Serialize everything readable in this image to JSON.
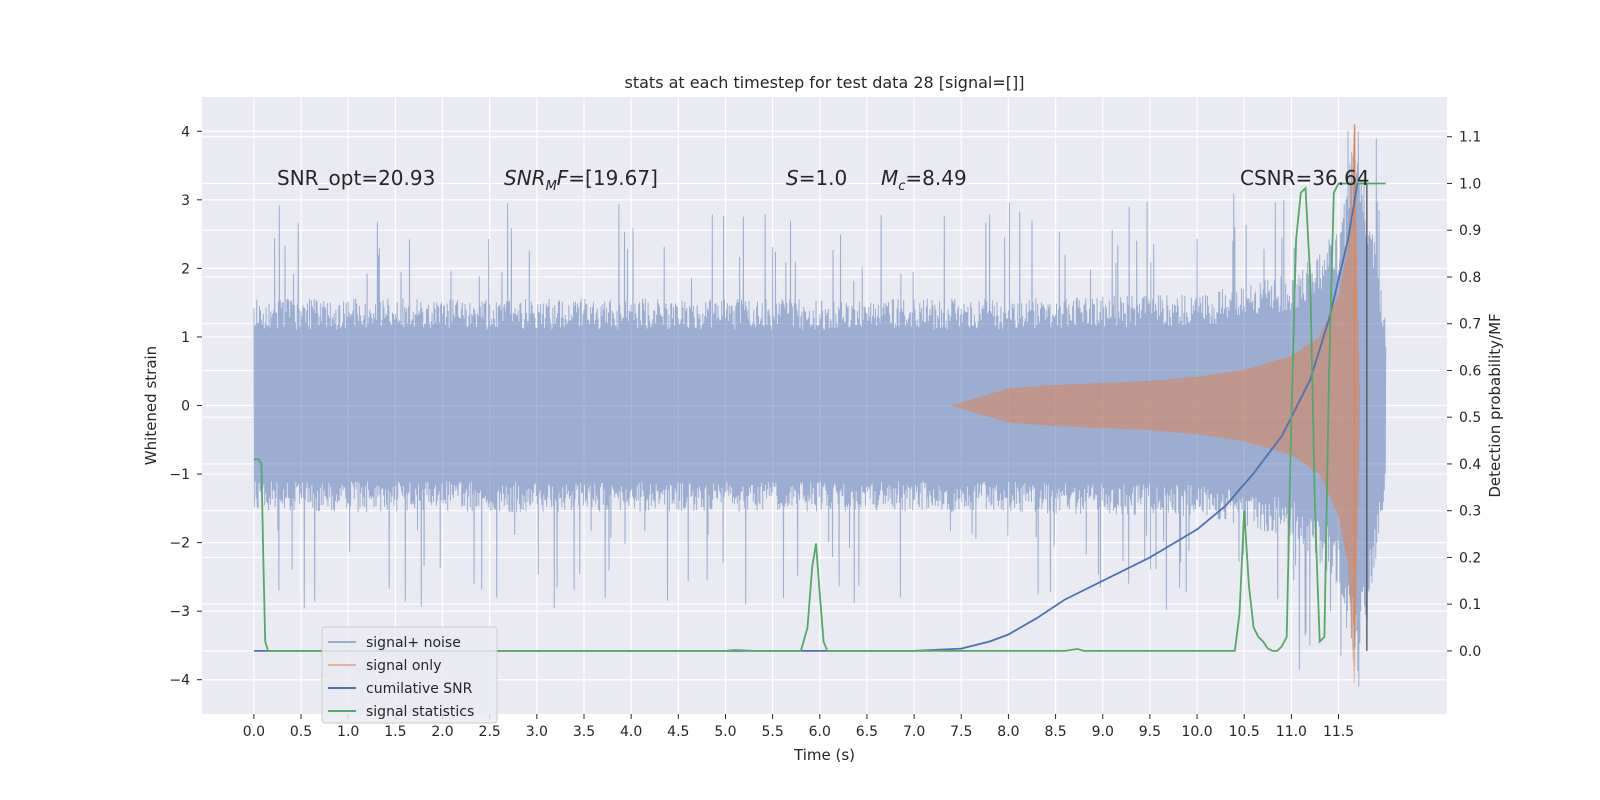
{
  "chart_data": {
    "type": "line",
    "title": "stats at each timestep for test data 28 [signal=[]]",
    "xlabel": "Time (s)",
    "ylabel": "Whitened strain",
    "y2label": "Detection probability/MF",
    "xlim": [
      -0.55,
      12.65
    ],
    "ylim": [
      -4.5,
      4.5
    ],
    "y2lim": [
      -0.135,
      1.185
    ],
    "x_ticks": [
      "0.0",
      "0.5",
      "1.0",
      "1.5",
      "2.0",
      "2.5",
      "3.0",
      "3.5",
      "4.0",
      "4.5",
      "5.0",
      "5.5",
      "6.0",
      "6.5",
      "7.0",
      "7.5",
      "8.0",
      "8.5",
      "9.0",
      "9.5",
      "10.0",
      "10.5",
      "11.0",
      "11.5"
    ],
    "y_ticks": [
      "4",
      "3",
      "2",
      "1",
      "0",
      "−1",
      "−2",
      "−3",
      "−4"
    ],
    "y2_ticks": [
      "1.1",
      "1.0",
      "0.9",
      "0.8",
      "0.7",
      "0.6",
      "0.5",
      "0.4",
      "0.3",
      "0.2",
      "0.1",
      "0.0"
    ],
    "grid": true,
    "legend_position": "lower-left",
    "annotations": {
      "snr_opt": "SNR_opt=20.93",
      "snr_mf_italic": "SNR",
      "snr_mf_sub": "M",
      "snr_mf_italic2": "F",
      "snr_mf_value": "=[19.67]",
      "s_italic": "S",
      "s_value": "=1.0",
      "mc_italic": "M",
      "mc_sub": "c",
      "mc_value": "=8.49",
      "csnr": "CSNR=36.64"
    },
    "series": [
      {
        "name": "signal+ noise",
        "axis": "left",
        "color": "#4c72b0",
        "note": "noise band, envelope approx ±1.3 core with spikes to ±3",
        "x_range": [
          0.0,
          12.0
        ],
        "envelope": [
          [
            0.0,
            1.3
          ],
          [
            7.5,
            1.3
          ],
          [
            10.0,
            1.35
          ],
          [
            11.0,
            1.6
          ],
          [
            11.5,
            2.2
          ],
          [
            11.7,
            3.5
          ],
          [
            12.0,
            1.0
          ]
        ]
      },
      {
        "name": "signal only",
        "axis": "left",
        "color": "#dd8452",
        "x": [
          7.4,
          8.0,
          8.5,
          9.0,
          9.5,
          10.0,
          10.5,
          11.0,
          11.3,
          11.5,
          11.6,
          11.67,
          11.72
        ],
        "amplitude": [
          0.0,
          0.25,
          0.3,
          0.33,
          0.36,
          0.42,
          0.52,
          0.72,
          1.0,
          1.6,
          2.3,
          4.1,
          0.3
        ]
      },
      {
        "name": "cumilative SNR",
        "axis": "right",
        "color": "#4c72b0",
        "x": [
          0.0,
          7.0,
          7.5,
          7.8,
          8.0,
          8.3,
          8.6,
          9.0,
          9.5,
          10.0,
          10.3,
          10.6,
          10.9,
          11.2,
          11.4,
          11.6,
          11.7
        ],
        "y": [
          0.0,
          0.0,
          0.005,
          0.02,
          0.035,
          0.07,
          0.11,
          0.15,
          0.2,
          0.26,
          0.31,
          0.38,
          0.46,
          0.58,
          0.71,
          0.88,
          1.0
        ]
      },
      {
        "name": "signal statistics",
        "axis": "right",
        "color": "#55a868",
        "x": [
          0.0,
          0.05,
          0.08,
          0.1,
          0.12,
          0.15,
          5.0,
          5.1,
          5.3,
          5.8,
          5.87,
          5.92,
          5.96,
          6.0,
          6.04,
          6.08,
          6.5,
          8.6,
          8.73,
          8.8,
          10.4,
          10.45,
          10.5,
          10.55,
          10.6,
          10.65,
          10.7,
          10.75,
          10.8,
          10.85,
          10.9,
          10.95,
          11.0,
          11.05,
          11.1,
          11.15,
          11.2,
          11.25,
          11.3,
          11.35,
          11.4,
          11.45,
          11.5,
          11.7,
          11.75,
          11.88,
          11.96,
          12.0
        ],
        "y": [
          0.41,
          0.41,
          0.4,
          0.2,
          0.02,
          0.0,
          0.0,
          0.002,
          0.0,
          0.0,
          0.05,
          0.18,
          0.23,
          0.12,
          0.02,
          0.0,
          0.0,
          0.0,
          0.004,
          0.0,
          0.0,
          0.08,
          0.3,
          0.14,
          0.05,
          0.03,
          0.02,
          0.005,
          0.0,
          0.0,
          0.01,
          0.03,
          0.5,
          0.88,
          0.98,
          0.99,
          0.8,
          0.3,
          0.02,
          0.03,
          0.6,
          0.98,
          1.0,
          1.0,
          1.0,
          1.0,
          1.0,
          1.0
        ]
      }
    ],
    "marker_lines": [
      {
        "x": 11.67,
        "y_top": 4.1,
        "y_bottom": -3.2,
        "color": "#dd8452"
      },
      {
        "x": 11.8,
        "y_top": 1.0,
        "y_bottom": 0.0,
        "axis": "right",
        "color": "#555555"
      }
    ]
  }
}
